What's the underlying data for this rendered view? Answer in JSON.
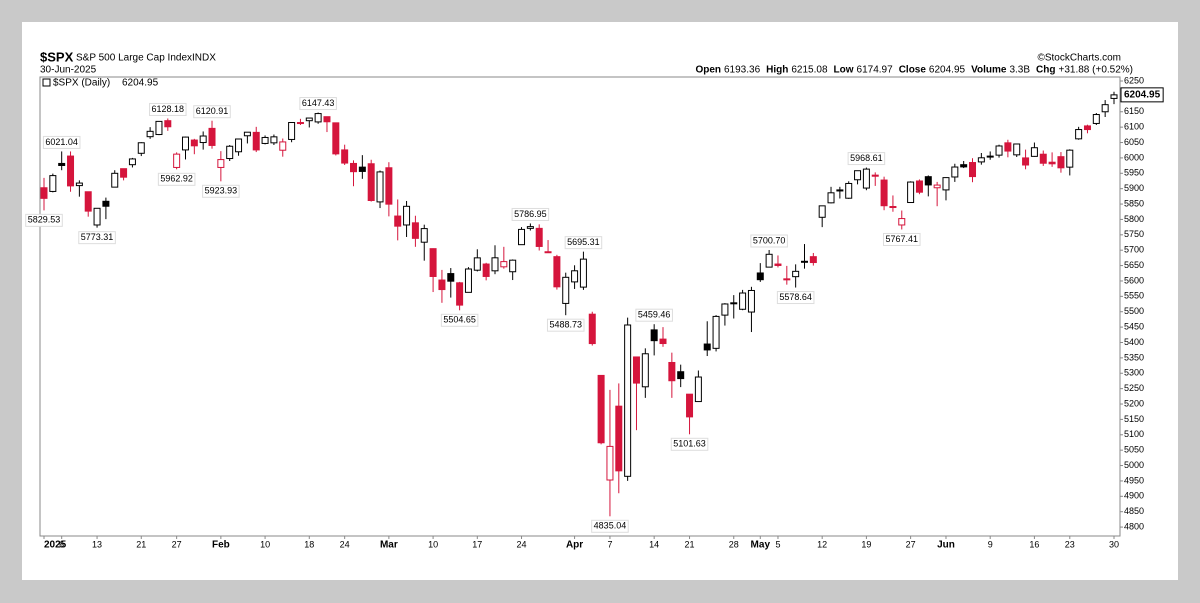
{
  "header": {
    "symbol": "$SPX",
    "name": "S&P 500 Large Cap Index",
    "exchange": "INDX",
    "date": "30-Jun-2025",
    "source": "©StockCharts.com",
    "stats": [
      {
        "label": "Open",
        "value": "6193.36"
      },
      {
        "label": "High",
        "value": "6215.08"
      },
      {
        "label": "Low",
        "value": "6174.97"
      },
      {
        "label": "Close",
        "value": "6204.95"
      },
      {
        "label": "Volume",
        "value": "3.3B"
      },
      {
        "label": "Chg",
        "value": "+31.88 (+0.52%)"
      }
    ]
  },
  "chart_data": {
    "type": "candlestick",
    "legend": "$SPX (Daily)",
    "x": [
      "2025-01-02",
      "2025-01-03",
      "2025-01-06",
      "2025-01-07",
      "2025-01-08",
      "2025-01-10",
      "2025-01-13",
      "2025-01-14",
      "2025-01-15",
      "2025-01-16",
      "2025-01-17",
      "2025-01-21",
      "2025-01-22",
      "2025-01-23",
      "2025-01-24",
      "2025-01-27",
      "2025-01-28",
      "2025-01-29",
      "2025-01-30",
      "2025-01-31",
      "2025-02-03",
      "2025-02-04",
      "2025-02-05",
      "2025-02-06",
      "2025-02-07",
      "2025-02-10",
      "2025-02-11",
      "2025-02-12",
      "2025-02-13",
      "2025-02-14",
      "2025-02-18",
      "2025-02-19",
      "2025-02-20",
      "2025-02-21",
      "2025-02-24",
      "2025-02-25",
      "2025-02-26",
      "2025-02-27",
      "2025-02-28",
      "2025-03-03",
      "2025-03-04",
      "2025-03-05",
      "2025-03-06",
      "2025-03-07",
      "2025-03-10",
      "2025-03-11",
      "2025-03-12",
      "2025-03-13",
      "2025-03-14",
      "2025-03-17",
      "2025-03-18",
      "2025-03-19",
      "2025-03-20",
      "2025-03-21",
      "2025-03-24",
      "2025-03-25",
      "2025-03-26",
      "2025-03-27",
      "2025-03-28",
      "2025-03-31",
      "2025-04-01",
      "2025-04-02",
      "2025-04-03",
      "2025-04-04",
      "2025-04-07",
      "2025-04-08",
      "2025-04-09",
      "2025-04-10",
      "2025-04-11",
      "2025-04-14",
      "2025-04-15",
      "2025-04-16",
      "2025-04-17",
      "2025-04-21",
      "2025-04-22",
      "2025-04-23",
      "2025-04-24",
      "2025-04-25",
      "2025-04-28",
      "2025-04-29",
      "2025-04-30",
      "2025-05-01",
      "2025-05-02",
      "2025-05-05",
      "2025-05-06",
      "2025-05-07",
      "2025-05-08",
      "2025-05-09",
      "2025-05-12",
      "2025-05-13",
      "2025-05-14",
      "2025-05-15",
      "2025-05-16",
      "2025-05-19",
      "2025-05-20",
      "2025-05-21",
      "2025-05-22",
      "2025-05-23",
      "2025-05-27",
      "2025-05-28",
      "2025-05-29",
      "2025-05-30",
      "2025-06-02",
      "2025-06-03",
      "2025-06-04",
      "2025-06-05",
      "2025-06-06",
      "2025-06-09",
      "2025-06-10",
      "2025-06-11",
      "2025-06-12",
      "2025-06-13",
      "2025-06-16",
      "2025-06-17",
      "2025-06-18",
      "2025-06-20",
      "2025-06-23",
      "2025-06-24",
      "2025-06-25",
      "2025-06-26",
      "2025-06-27",
      "2025-06-30"
    ],
    "open": [
      5903,
      5891,
      5982,
      6006,
      5910,
      5890,
      5782,
      5859,
      5905,
      5965,
      5978,
      6015,
      6069,
      6076,
      6121,
      5969,
      6026,
      6058,
      6050,
      6096,
      5969,
      5998,
      6020,
      6072,
      6083,
      6047,
      6049,
      6025,
      6060,
      6115,
      6121,
      6117,
      6134,
      6114,
      6026,
      5982,
      5970,
      5981,
      5857,
      5968,
      5811,
      5782,
      5789,
      5726,
      5705,
      5603,
      5624,
      5594,
      5563,
      5635,
      5655,
      5633,
      5646,
      5630,
      5718,
      5771,
      5771,
      5695,
      5679,
      5527,
      5597,
      5580,
      5492,
      5293,
      4953,
      5193,
      4965,
      5353,
      5256,
      5441,
      5411,
      5335,
      5305,
      5232,
      5208,
      5395,
      5381,
      5489,
      5529,
      5508,
      5499,
      5626,
      5645,
      5655,
      5605,
      5614,
      5663,
      5679,
      5807,
      5854,
      5896,
      5869,
      5929,
      5902,
      5944,
      5928,
      5842,
      5782,
      5855,
      5925,
      5939,
      5903,
      5896,
      5938,
      5978,
      5985,
      5987,
      6005,
      6009,
      6049,
      6010,
      6000,
      6005,
      6012,
      5986,
      6004,
      5970,
      6062,
      6104,
      6112,
      6150,
      6193.36
    ],
    "high": [
      5935,
      5949,
      6021.04,
      6021,
      5927,
      5890,
      5837,
      5871,
      5960,
      5965,
      6000,
      6051,
      6100,
      6118,
      6128.18,
      6018,
      6069,
      6062,
      6086,
      6120.91,
      6022,
      6042,
      6062,
      6084,
      6101,
      6073,
      6076,
      6063,
      6116,
      6127,
      6129,
      6147.43,
      6134,
      6114,
      6043,
      5992,
      6009,
      5994,
      5959,
      5986,
      5865,
      5860,
      5812,
      5783,
      5706,
      5636,
      5642,
      5597,
      5645,
      5703,
      5659,
      5716,
      5711,
      5670,
      5775,
      5786.95,
      5784,
      5733,
      5685,
      5627,
      5651,
      5695.31,
      5500,
      5293,
      5246,
      5267,
      5481,
      5353,
      5381,
      5459.46,
      5450,
      5367,
      5328,
      5232,
      5309,
      5469,
      5489,
      5528,
      5554,
      5571,
      5581,
      5658,
      5700.7,
      5683,
      5649,
      5654,
      5720,
      5691,
      5845,
      5906,
      5906,
      5924,
      5958,
      5968.61,
      5953,
      5939,
      5878,
      5829,
      5924,
      5930,
      5943,
      5922,
      5937,
      5981,
      5990,
      5999,
      6016,
      6021,
      6043,
      6059,
      6045,
      6027,
      6050,
      6024,
      6018,
      6019,
      6028,
      6101,
      6108,
      6146,
      6188,
      6215.08
    ],
    "low": [
      5829.53,
      5888,
      5960,
      5890,
      5874,
      5809,
      5773.31,
      5801,
      5905,
      5927,
      5969,
      6006,
      6062,
      6074,
      6088,
      5962.92,
      5995,
      6012,
      6027,
      6030,
      5923.93,
      5990,
      6007,
      6047,
      6019,
      6044,
      6042,
      6004,
      6051,
      6107,
      6099,
      6111,
      6084,
      6008,
      5977,
      5908,
      5932,
      5858,
      5837,
      5810,
      5732,
      5743,
      5711,
      5666,
      5564,
      5529,
      5546,
      5504.65,
      5563,
      5631,
      5602,
      5622,
      5640,
      5603,
      5718,
      5764,
      5699,
      5694,
      5572,
      5488.73,
      5574,
      5571,
      5390,
      5069,
      4835.04,
      4910,
      4950,
      5115,
      5220,
      5358,
      5386,
      5220,
      5255,
      5101.63,
      5207,
      5356,
      5371,
      5455,
      5478,
      5505,
      5434,
      5597,
      5644,
      5644,
      5588,
      5578.64,
      5640,
      5650,
      5775,
      5852,
      5868,
      5867,
      5914,
      5895,
      5909,
      5830,
      5825,
      5767.41,
      5854,
      5882,
      5875,
      5843,
      5862,
      5922,
      5967,
      5921,
      5978,
      5994,
      6001,
      6002,
      6003,
      5963,
      6004,
      5974,
      5971,
      5952,
      5943,
      6059,
      6080,
      6107,
      6133,
      6174.97
    ],
    "close": [
      5868.55,
      5942.47,
      5975.38,
      5909.03,
      5918.25,
      5827.04,
      5836.22,
      5842.91,
      5949.91,
      5937.34,
      5996.66,
      6049.24,
      6086.37,
      6118.71,
      6101.24,
      6012.28,
      6067.7,
      6039.31,
      6071.17,
      6040.53,
      5994.57,
      6037.88,
      6061.48,
      6083.57,
      6025.99,
      6066.44,
      6068.5,
      6051.97,
      6115.07,
      6114.63,
      6129.58,
      6144.15,
      6117.52,
      6013.13,
      5983.25,
      5955.25,
      5956.06,
      5861.57,
      5954.5,
      5849.72,
      5778.15,
      5842.63,
      5738.52,
      5770.2,
      5614.56,
      5572.07,
      5599.3,
      5521.52,
      5638.94,
      5675.12,
      5614.66,
      5675.29,
      5662.89,
      5667.56,
      5767.57,
      5776.65,
      5712.2,
      5693.31,
      5580.94,
      5611.85,
      5633.07,
      5670.97,
      5396.52,
      5074.08,
      5062.25,
      4982.77,
      5456.9,
      5268.05,
      5363.36,
      5405.97,
      5396.63,
      5275.7,
      5282.7,
      5158.2,
      5287.76,
      5375.86,
      5484.77,
      5525.21,
      5528.75,
      5560.83,
      5569.06,
      5604.14,
      5686.67,
      5650.38,
      5606.91,
      5631.28,
      5663.94,
      5659.91,
      5844.19,
      5886.55,
      5892.58,
      5916.93,
      5958.38,
      5963.6,
      5940.46,
      5844.61,
      5842.01,
      5802.82,
      5921.54,
      5888.55,
      5912.17,
      5911.69,
      5935.94,
      5970.37,
      5970.81,
      5939.3,
      6000.36,
      6005.88,
      6038.81,
      6022.24,
      6045.26,
      5976.97,
      6033.11,
      5982.72,
      5980.87,
      5967.84,
      6025.17,
      6092.18,
      6092.16,
      6141.02,
      6173.07,
      6204.95
    ],
    "high_labels": {
      "2": "6021.04",
      "14": "6128.18",
      "19": "6120.91",
      "31": "6147.43",
      "55": "5786.95",
      "61": "5695.31",
      "69": "5459.46",
      "82": "5700.70",
      "93": "5968.61"
    },
    "low_labels": {
      "0": "5829.53",
      "6": "5773.31",
      "15": "5962.92",
      "20": "5923.93",
      "47": "5504.65",
      "59": "5488.73",
      "64": "4835.04",
      "73": "5101.63",
      "85": "5578.64",
      "97": "5767.41"
    },
    "up_color": "#000000",
    "down_color": "#d5153c",
    "ylim": [
      4771,
      6263
    ],
    "yticks": [
      4800,
      4850,
      4900,
      4950,
      5000,
      5050,
      5100,
      5150,
      5200,
      5250,
      5300,
      5350,
      5400,
      5450,
      5500,
      5550,
      5600,
      5650,
      5700,
      5750,
      5800,
      5850,
      5900,
      5950,
      6000,
      6050,
      6100,
      6150,
      6200,
      6250
    ],
    "xticks": [
      {
        "value": "2025-01-02",
        "label": "2025"
      },
      {
        "value": "2025-01-06",
        "label": "6"
      },
      {
        "value": "2025-01-13",
        "label": "13"
      },
      {
        "value": "2025-01-21",
        "label": "21"
      },
      {
        "value": "2025-01-27",
        "label": "27"
      },
      {
        "value": "2025-02-03",
        "label": "Feb"
      },
      {
        "value": "2025-02-10",
        "label": "10"
      },
      {
        "value": "2025-02-18",
        "label": "18"
      },
      {
        "value": "2025-02-24",
        "label": "24"
      },
      {
        "value": "2025-03-03",
        "label": "Mar"
      },
      {
        "value": "2025-03-10",
        "label": "10"
      },
      {
        "value": "2025-03-17",
        "label": "17"
      },
      {
        "value": "2025-03-24",
        "label": "24"
      },
      {
        "value": "2025-04-01",
        "label": "Apr"
      },
      {
        "value": "2025-04-07",
        "label": "7"
      },
      {
        "value": "2025-04-14",
        "label": "14"
      },
      {
        "value": "2025-04-21",
        "label": "21"
      },
      {
        "value": "2025-04-28",
        "label": "28"
      },
      {
        "value": "2025-05-01",
        "label": "May"
      },
      {
        "value": "2025-05-05",
        "label": "5"
      },
      {
        "value": "2025-05-12",
        "label": "12"
      },
      {
        "value": "2025-05-19",
        "label": "19"
      },
      {
        "value": "2025-05-27",
        "label": "27"
      },
      {
        "value": "2025-06-02",
        "label": "Jun"
      },
      {
        "value": "2025-06-09",
        "label": "9"
      },
      {
        "value": "2025-06-16",
        "label": "16"
      },
      {
        "value": "2025-06-23",
        "label": "23"
      },
      {
        "value": "2025-06-30",
        "label": "30"
      }
    ],
    "bold_xticks": [
      "2025",
      "Feb",
      "Mar",
      "Apr",
      "May",
      "Jun"
    ]
  }
}
